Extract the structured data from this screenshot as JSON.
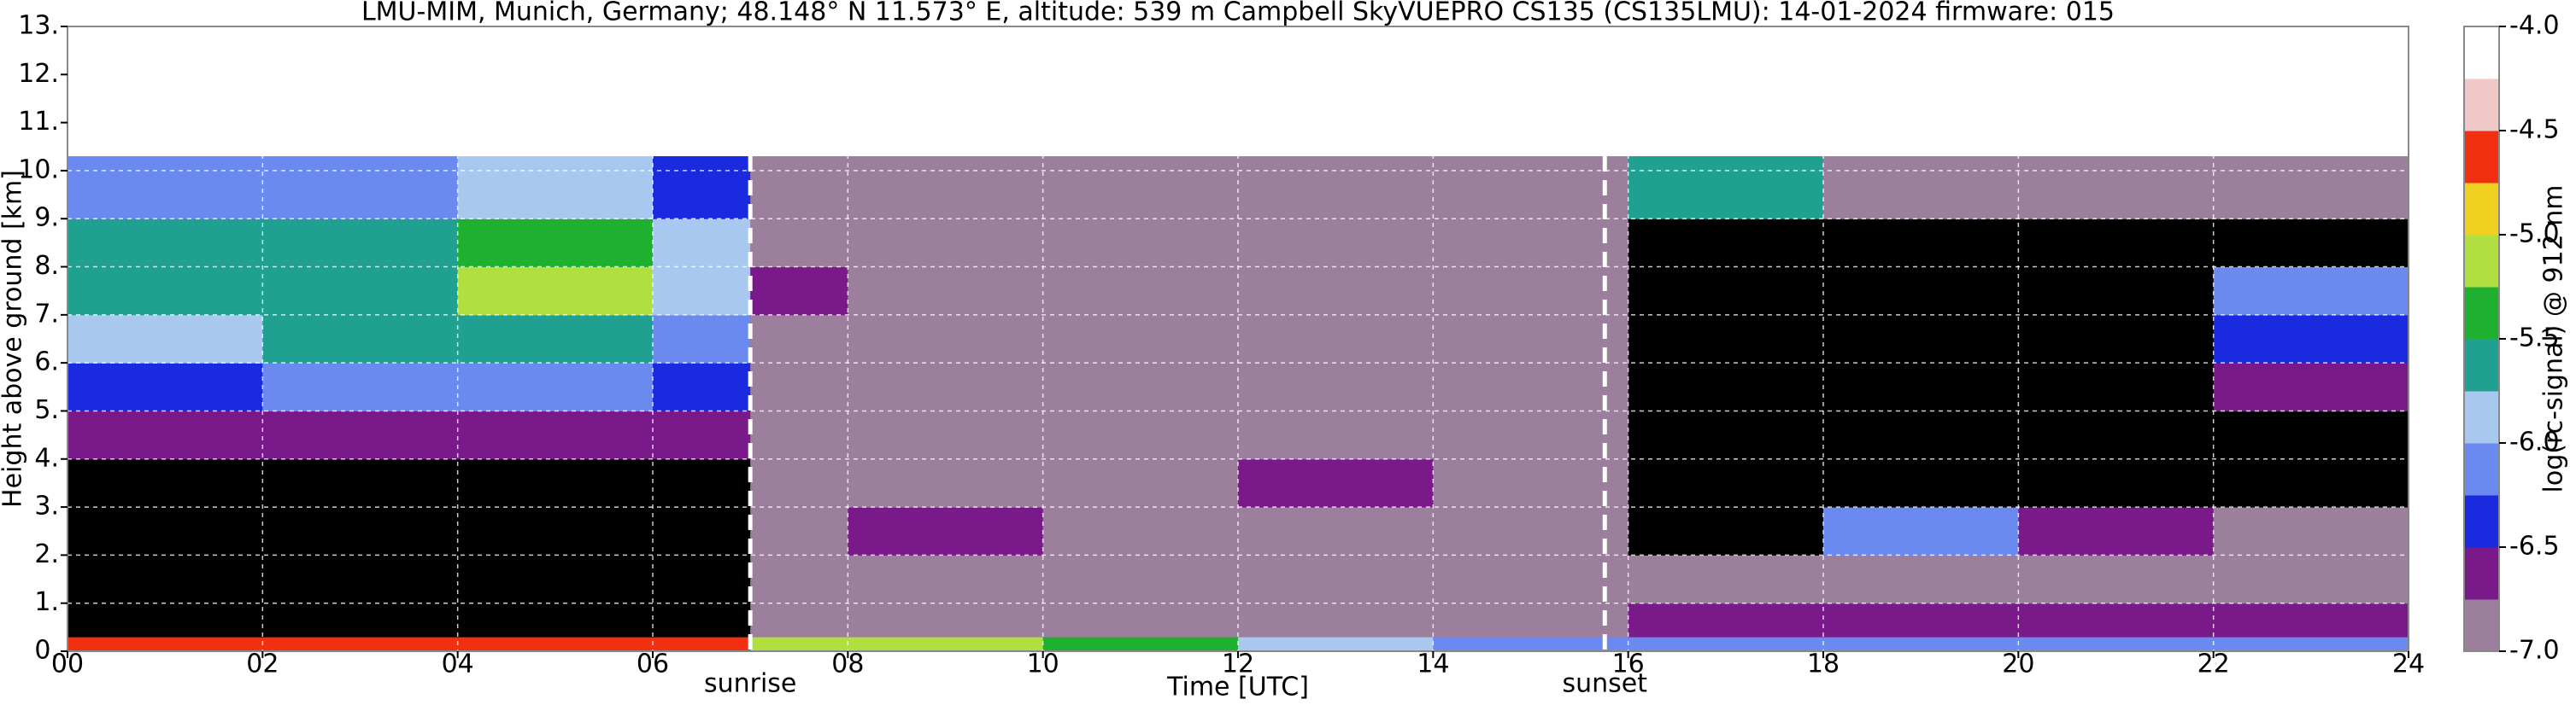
{
  "chart_data": {
    "type": "heatmap",
    "title": "LMU-MIM, Munich, Germany; 48.148° N 11.573° E, altitude: 539 m    Campbell SkyVUEPRO CS135 (CS135LMU): 14-01-2024    firmware: 015",
    "x_label": "Time [UTC]",
    "y_label": "Height above ground [km]",
    "x_edges": [
      0,
      2,
      4,
      6,
      7,
      8,
      10,
      12,
      14,
      16,
      18,
      20,
      22,
      24
    ],
    "y_edges": [
      0,
      0.3,
      1,
      2,
      3,
      4,
      5,
      6,
      7,
      8,
      9,
      10.3
    ],
    "z": [
      [
        -4.6,
        -4.6,
        -4.6,
        -4.6,
        -5.0,
        -5.2,
        -5.4,
        -5.8,
        -6.0,
        -6.2,
        -6.2,
        -6.2,
        -6.1
      ],
      [
        -7.5,
        -7.5,
        -7.5,
        -7.5,
        -6.8,
        -6.9,
        -6.9,
        -6.9,
        -6.9,
        -6.6,
        -6.6,
        -6.6,
        -6.6
      ],
      [
        -7.5,
        -7.5,
        -7.5,
        -7.5,
        -6.9,
        -6.95,
        -6.95,
        -6.95,
        -6.95,
        -6.85,
        -6.8,
        -6.75,
        -6.8
      ],
      [
        -7.5,
        -7.5,
        -7.5,
        -7.5,
        -6.9,
        -6.6,
        -6.95,
        -6.95,
        -6.95,
        -7.5,
        -6.2,
        -6.5,
        -6.9
      ],
      [
        -7.5,
        -7.5,
        -7.5,
        -7.5,
        -6.9,
        -6.95,
        -6.95,
        -6.7,
        -6.95,
        -7.5,
        -7.5,
        -7.5,
        -7.5
      ],
      [
        -6.7,
        -6.7,
        -6.7,
        -6.7,
        -6.9,
        -6.95,
        -6.95,
        -6.95,
        -6.95,
        -7.5,
        -7.5,
        -7.5,
        -7.5
      ],
      [
        -6.3,
        -6.0,
        -6.1,
        -6.4,
        -6.9,
        -6.95,
        -6.95,
        -6.95,
        -6.95,
        -7.5,
        -7.5,
        -7.5,
        -6.6
      ],
      [
        -5.8,
        -5.6,
        -5.7,
        -6.2,
        -6.8,
        -6.95,
        -6.95,
        -6.95,
        -6.95,
        -7.5,
        -7.5,
        -7.5,
        -6.3
      ],
      [
        -5.7,
        -5.5,
        -5.1,
        -5.8,
        -6.7,
        -6.95,
        -6.95,
        -6.95,
        -6.95,
        -7.5,
        -7.5,
        -7.5,
        -6.2
      ],
      [
        -5.6,
        -5.6,
        -5.3,
        -5.9,
        -6.8,
        -6.95,
        -6.95,
        -6.95,
        -6.95,
        -7.5,
        -7.5,
        -7.5,
        -7.5
      ],
      [
        -6.2,
        -6.0,
        -5.9,
        -6.3,
        -6.9,
        -6.95,
        -6.95,
        -6.95,
        -6.95,
        -5.6,
        -6.8,
        -6.95,
        -6.95
      ]
    ],
    "xlim": [
      0,
      24
    ],
    "ylim": [
      0,
      13
    ],
    "xticks": [
      {
        "value": 0,
        "label": "00"
      },
      {
        "value": 2,
        "label": "02"
      },
      {
        "value": 4,
        "label": "04"
      },
      {
        "value": 6,
        "label": "06"
      },
      {
        "value": 8,
        "label": "08"
      },
      10,
      12,
      14,
      16,
      18,
      20,
      22,
      24
    ],
    "yticks": [
      {
        "value": 0,
        "label": "0."
      },
      {
        "value": 1,
        "label": "1."
      },
      {
        "value": 2,
        "label": "2."
      },
      {
        "value": 3,
        "label": "3."
      },
      {
        "value": 4,
        "label": "4."
      },
      {
        "value": 5,
        "label": "5."
      },
      {
        "value": 6,
        "label": "6."
      },
      {
        "value": 7,
        "label": "7."
      },
      {
        "value": 8,
        "label": "8."
      },
      {
        "value": 9,
        "label": "9."
      },
      {
        "value": 10,
        "label": "10."
      },
      {
        "value": 11,
        "label": "11."
      },
      {
        "value": 12,
        "label": "12."
      },
      {
        "value": 13,
        "label": "13."
      }
    ],
    "grid": true,
    "annotations": [
      {
        "label": "sunrise",
        "x": 7.0
      },
      {
        "label": "sunset",
        "x": 15.76
      }
    ],
    "colorbar": {
      "label": "log(rc-signal) @ 912 nm",
      "bounds": [
        -7,
        -6.75,
        -6.5,
        -6.25,
        -6,
        -5.75,
        -5.5,
        -5.25,
        -5,
        -4.75,
        -4.5,
        -4.25,
        -4
      ],
      "colors": [
        "#9c7f9c",
        "#7a1a8a",
        "#1a2adf",
        "#6a8aef",
        "#a8c8f0",
        "#20a090",
        "#20b030",
        "#b0e040",
        "#f0d020",
        "#f03010",
        "#f0c8c8",
        "#ffffff"
      ],
      "under_color": "#000000",
      "ticks": [
        {
          "value": -7,
          "label": "-7.0"
        },
        -6.5,
        {
          "value": -6,
          "label": "-6.0"
        },
        -5.5,
        {
          "value": -5,
          "label": "-5.0"
        },
        -4.5,
        {
          "value": -4,
          "label": "-4.0"
        }
      ]
    }
  }
}
